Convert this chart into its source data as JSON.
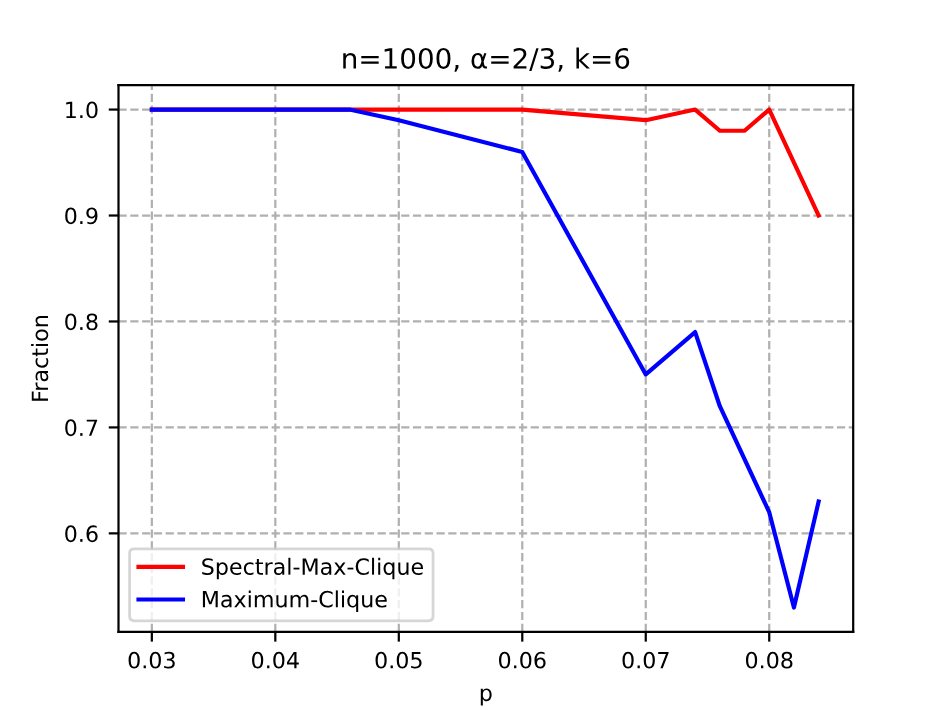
{
  "chart_data": {
    "type": "line",
    "title": "n=1000, α=2/3, k=6",
    "xlabel": "p",
    "ylabel": "Fraction",
    "series": [
      {
        "name": "Spectral-Max-Clique",
        "color": "#ff0000",
        "x": [
          0.03,
          0.046,
          0.06,
          0.07,
          0.074,
          0.076,
          0.078,
          0.08,
          0.084
        ],
        "values": [
          1.0,
          1.0,
          1.0,
          0.99,
          1.0,
          0.98,
          0.98,
          1.0,
          0.9
        ]
      },
      {
        "name": "Maximum-Clique",
        "color": "#0000ff",
        "x": [
          0.03,
          0.046,
          0.05,
          0.06,
          0.07,
          0.074,
          0.076,
          0.08,
          0.082,
          0.084
        ],
        "values": [
          1.0,
          1.0,
          0.99,
          0.96,
          0.75,
          0.79,
          0.72,
          0.62,
          0.53,
          0.63
        ]
      }
    ],
    "xlim": [
      0.0273,
      0.0868
    ],
    "ylim": [
      0.507,
      1.023
    ],
    "xticks": [
      0.03,
      0.04,
      0.05,
      0.06,
      0.07,
      0.08
    ],
    "yticks": [
      0.6,
      0.7,
      0.8,
      0.9,
      {
        "value": 1.0,
        "label": "1.0"
      }
    ],
    "grid": true,
    "legend": "bottom left",
    "line_style": "solid",
    "marker": "none"
  }
}
